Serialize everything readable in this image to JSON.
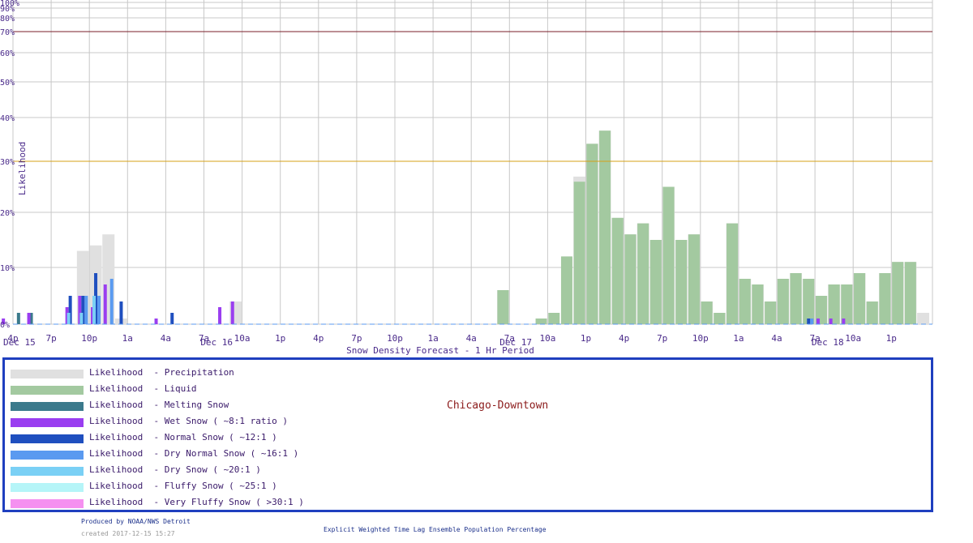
{
  "chart_data": {
    "type": "bar",
    "title": "Chicago-Downtown",
    "xlabel": "Snow Density Forecast -  1 Hr Period",
    "ylabel": "Likelihood",
    "ylim": [
      0,
      100
    ],
    "y_ticks": [
      {
        "v": 0,
        "label": "0%"
      },
      {
        "v": 10,
        "label": "10%"
      },
      {
        "v": 20,
        "label": "20%"
      },
      {
        "v": 30,
        "label": "30%"
      },
      {
        "v": 40,
        "label": "40%"
      },
      {
        "v": 50,
        "label": "50%"
      },
      {
        "v": 60,
        "label": "60%"
      },
      {
        "v": 70,
        "label": "70%"
      },
      {
        "v": 80,
        "label": "80%"
      },
      {
        "v": 90,
        "label": "90%"
      },
      {
        "v": 100,
        "label": "100%"
      }
    ],
    "reference_lines": [
      {
        "v": 70,
        "color": "#7a1f2a"
      },
      {
        "v": 30,
        "color": "#d4a017"
      }
    ],
    "x_ticks": [
      {
        "hour": 0,
        "label": "4p"
      },
      {
        "hour": 3,
        "label": "7p"
      },
      {
        "hour": 6,
        "label": "10p"
      },
      {
        "hour": 9,
        "label": "1a"
      },
      {
        "hour": 12,
        "label": "4a"
      },
      {
        "hour": 15,
        "label": "7a"
      },
      {
        "hour": 18,
        "label": "10a"
      },
      {
        "hour": 21,
        "label": "1p"
      },
      {
        "hour": 24,
        "label": "4p"
      },
      {
        "hour": 27,
        "label": "7p"
      },
      {
        "hour": 30,
        "label": "10p"
      },
      {
        "hour": 33,
        "label": "1a"
      },
      {
        "hour": 36,
        "label": "4a"
      },
      {
        "hour": 39,
        "label": "7a"
      },
      {
        "hour": 42,
        "label": "10a"
      },
      {
        "hour": 45,
        "label": "1p"
      },
      {
        "hour": 48,
        "label": "4p"
      },
      {
        "hour": 51,
        "label": "7p"
      },
      {
        "hour": 54,
        "label": "10p"
      },
      {
        "hour": 57,
        "label": "1a"
      },
      {
        "hour": 60,
        "label": "4a"
      },
      {
        "hour": 63,
        "label": "7a"
      },
      {
        "hour": 66,
        "label": "10a"
      },
      {
        "hour": 69,
        "label": "1p"
      }
    ],
    "day_labels": [
      {
        "hour": 0.5,
        "label": "Dec 15"
      },
      {
        "hour": 16,
        "label": "Dec 16"
      },
      {
        "hour": 39.5,
        "label": "Dec 17"
      },
      {
        "hour": 64,
        "label": "Dec 18"
      }
    ],
    "series": [
      {
        "name": "Precipitation",
        "color": "#e0e0e0",
        "points": [
          [
            5,
            13
          ],
          [
            6,
            14
          ],
          [
            7,
            16
          ],
          [
            8,
            1
          ],
          [
            17,
            4
          ],
          [
            38,
            6
          ],
          [
            44,
            27
          ],
          [
            45,
            34
          ],
          [
            46,
            37
          ],
          [
            47,
            19
          ],
          [
            48,
            16
          ],
          [
            49,
            18
          ],
          [
            50,
            15
          ],
          [
            51,
            25
          ],
          [
            52,
            15
          ],
          [
            53,
            16
          ],
          [
            54,
            4
          ],
          [
            55,
            2
          ],
          [
            56,
            18
          ],
          [
            57,
            8
          ],
          [
            58,
            7
          ],
          [
            59,
            4
          ],
          [
            60,
            8
          ],
          [
            61,
            9
          ],
          [
            62,
            8
          ],
          [
            63,
            5
          ],
          [
            64,
            7
          ],
          [
            65,
            7
          ],
          [
            66,
            9
          ],
          [
            67,
            4
          ],
          [
            68,
            9
          ],
          [
            69,
            11
          ],
          [
            70,
            11
          ],
          [
            71,
            2
          ]
        ]
      },
      {
        "name": "Liquid",
        "color": "#a3c9a0",
        "points": [
          [
            38,
            6
          ],
          [
            41,
            1
          ],
          [
            42,
            2
          ],
          [
            43,
            12
          ],
          [
            44,
            26
          ],
          [
            45,
            34
          ],
          [
            46,
            37
          ],
          [
            47,
            19
          ],
          [
            48,
            16
          ],
          [
            49,
            18
          ],
          [
            50,
            15
          ],
          [
            51,
            25
          ],
          [
            52,
            15
          ],
          [
            53,
            16
          ],
          [
            54,
            4
          ],
          [
            55,
            2
          ],
          [
            56,
            18
          ],
          [
            57,
            8
          ],
          [
            58,
            7
          ],
          [
            59,
            4
          ],
          [
            60,
            8
          ],
          [
            61,
            9
          ],
          [
            62,
            8
          ],
          [
            63,
            5
          ],
          [
            64,
            7
          ],
          [
            65,
            7
          ],
          [
            66,
            9
          ],
          [
            67,
            4
          ],
          [
            68,
            9
          ],
          [
            69,
            11
          ],
          [
            70,
            11
          ]
        ]
      },
      {
        "name": "Melting Snow",
        "color": "#3b7a8c",
        "points": [
          [
            0,
            2
          ],
          [
            1,
            2
          ]
        ]
      },
      {
        "name": "Wet Snow ( ~8:1 ratio )",
        "color": "#9a3ef0",
        "points": [
          [
            -1,
            1
          ],
          [
            1,
            2
          ],
          [
            4,
            3
          ],
          [
            5,
            5
          ],
          [
            6,
            3
          ],
          [
            7,
            7
          ],
          [
            11,
            1
          ],
          [
            16,
            3
          ],
          [
            17,
            4
          ],
          [
            63,
            1
          ],
          [
            64,
            1
          ],
          [
            65,
            1
          ]
        ]
      },
      {
        "name": "Normal Snow ( ~12:1 )",
        "color": "#1f4fbf",
        "points": [
          [
            4,
            5
          ],
          [
            5,
            5
          ],
          [
            6,
            9
          ],
          [
            8,
            4
          ],
          [
            12,
            2
          ],
          [
            62,
            1
          ]
        ]
      },
      {
        "name": "Dry Normal Snow ( ~16:1 )",
        "color": "#5a9af0",
        "points": [
          [
            5,
            5
          ],
          [
            6,
            5
          ],
          [
            7,
            8
          ],
          [
            62,
            1
          ]
        ]
      },
      {
        "name": "Dry Snow ( ~20:1 )",
        "color": "#7ad0f5",
        "points": [
          [
            4,
            2
          ],
          [
            5,
            2
          ],
          [
            6,
            5
          ]
        ]
      },
      {
        "name": "Fluffy Snow ( ~25:1 )",
        "color": "#b5f5f8",
        "points": []
      },
      {
        "name": "Very Fluffy Snow ( >30:1 )",
        "color": "#f590f0",
        "points": []
      }
    ]
  },
  "legend": {
    "prefix": "Likelihood",
    "items": [
      {
        "text": "- Precipitation",
        "color": "#e0e0e0"
      },
      {
        "text": "- Liquid",
        "color": "#a3c9a0"
      },
      {
        "text": "- Melting Snow",
        "color": "#3b7a8c"
      },
      {
        "text": "- Wet Snow ( ~8:1 ratio )",
        "color": "#9a3ef0"
      },
      {
        "text": "- Normal Snow ( ~12:1 )",
        "color": "#1f4fbf"
      },
      {
        "text": "- Dry Normal Snow ( ~16:1 )",
        "color": "#5a9af0"
      },
      {
        "text": "- Dry Snow ( ~20:1 )",
        "color": "#7ad0f5"
      },
      {
        "text": "- Fluffy Snow ( ~25:1 )",
        "color": "#b5f5f8"
      },
      {
        "text": "- Very Fluffy Snow ( >30:1 )",
        "color": "#f590f0"
      }
    ],
    "station": "Chicago-Downtown"
  },
  "footer": {
    "produced_by": "Produced by NOAA/NWS Detroit",
    "created": "created 2017-12-15 15:27",
    "method": "Explicit Weighted Time Lag Ensemble Population Percentage"
  }
}
